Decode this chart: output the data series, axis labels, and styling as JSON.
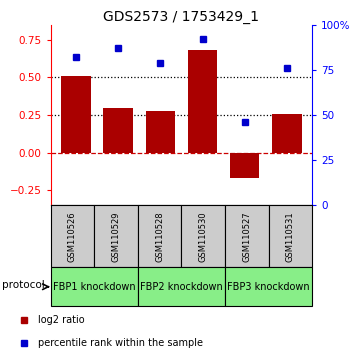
{
  "title": "GDS2573 / 1753429_1",
  "samples": [
    "GSM110526",
    "GSM110529",
    "GSM110528",
    "GSM110530",
    "GSM110527",
    "GSM110531"
  ],
  "log2_ratios": [
    0.51,
    0.3,
    0.28,
    0.68,
    -0.17,
    0.26
  ],
  "percentile_ranks": [
    82,
    87,
    79,
    92,
    46,
    76
  ],
  "proto_groups": [
    {
      "label": "FBP1 knockdown",
      "start": 0,
      "end": 1
    },
    {
      "label": "FBP2 knockdown",
      "start": 2,
      "end": 3
    },
    {
      "label": "FBP3 knockdown",
      "start": 4,
      "end": 5
    }
  ],
  "bar_color": "#aa0000",
  "dot_color": "#0000cc",
  "left_ylim": [
    -0.35,
    0.85
  ],
  "left_yticks": [
    -0.25,
    0.0,
    0.25,
    0.5,
    0.75
  ],
  "right_ylim": [
    0,
    100
  ],
  "right_yticks": [
    0,
    25,
    50,
    75,
    100
  ],
  "hlines": [
    0.25,
    0.5
  ],
  "sample_box_color": "#cccccc",
  "protocol_box_color": "#88ee88",
  "bar_width": 0.7,
  "figsize": [
    3.61,
    3.54
  ],
  "dpi": 100
}
